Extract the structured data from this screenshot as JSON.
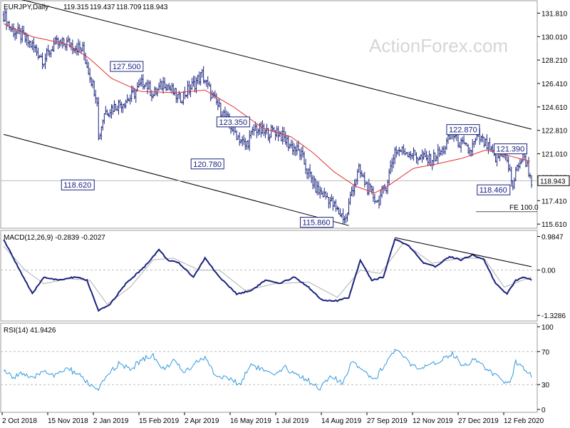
{
  "watermark": "ActionForex.com",
  "colors": {
    "bars": "#1a237e",
    "ma": "#e03030",
    "channel": "#000000",
    "macd": "#1a237e",
    "signal": "#b0b0b0",
    "rsi": "#3399dd",
    "grid": "#bdbdbd"
  },
  "chart_data": [
    {
      "type": "ohlc",
      "title": "EURJPY,Daily",
      "ohlc_readout": [
        "119.315",
        "119.437",
        "118.709",
        "118.943"
      ],
      "y_ticks": [
        131.81,
        130.01,
        128.21,
        126.41,
        124.61,
        122.81,
        121.01,
        119.21,
        117.41,
        115.61
      ],
      "y_tick_labels": [
        "131.810",
        "130.010",
        "128.210",
        "126.410",
        "124.610",
        "122.810",
        "121.010",
        "119.210",
        "117.410",
        "115.610"
      ],
      "ylim": [
        115.4,
        132.6
      ],
      "last_price": "118.943",
      "last_value": 118.943,
      "x_labels": [
        "2 Oct 2018",
        "15 Nov 2018",
        "2 Jan 2019",
        "15 Feb 2019",
        "2 Apr 2019",
        "16 May 2019",
        "1 Jul 2019",
        "14 Aug 2019",
        "27 Sep 2019",
        "12 Nov 2019",
        "27 Dec 2019",
        "12 Feb 2020"
      ],
      "anchors": [
        {
          "i": 0,
          "v": 131.7
        },
        {
          "i": 5,
          "v": 130.6
        },
        {
          "i": 12,
          "v": 130.1
        },
        {
          "i": 20,
          "v": 129.3
        },
        {
          "i": 28,
          "v": 128.2
        },
        {
          "i": 35,
          "v": 129.4
        },
        {
          "i": 45,
          "v": 129.5
        },
        {
          "i": 55,
          "v": 129.0
        },
        {
          "i": 62,
          "v": 126.3
        },
        {
          "i": 65,
          "v": 125.3
        },
        {
          "i": 66,
          "v": 122.1
        },
        {
          "i": 70,
          "v": 124.2
        },
        {
          "i": 80,
          "v": 124.8
        },
        {
          "i": 88,
          "v": 125.3
        },
        {
          "i": 98,
          "v": 126.6
        },
        {
          "i": 104,
          "v": 125.5
        },
        {
          "i": 112,
          "v": 126.5
        },
        {
          "i": 122,
          "v": 125.2
        },
        {
          "i": 132,
          "v": 126.3
        },
        {
          "i": 138,
          "v": 127.1
        },
        {
          "i": 145,
          "v": 125.4
        },
        {
          "i": 152,
          "v": 124.2
        },
        {
          "i": 160,
          "v": 122.8
        },
        {
          "i": 168,
          "v": 121.6
        },
        {
          "i": 175,
          "v": 123.0
        },
        {
          "i": 182,
          "v": 122.6
        },
        {
          "i": 190,
          "v": 122.8
        },
        {
          "i": 198,
          "v": 121.8
        },
        {
          "i": 206,
          "v": 121.1
        },
        {
          "i": 212,
          "v": 119.5
        },
        {
          "i": 218,
          "v": 118.2
        },
        {
          "i": 226,
          "v": 117.6
        },
        {
          "i": 232,
          "v": 116.6
        },
        {
          "i": 238,
          "v": 116.0
        },
        {
          "i": 242,
          "v": 118.2
        },
        {
          "i": 247,
          "v": 119.7
        },
        {
          "i": 253,
          "v": 118.4
        },
        {
          "i": 260,
          "v": 117.3
        },
        {
          "i": 266,
          "v": 118.6
        },
        {
          "i": 272,
          "v": 121.3
        },
        {
          "i": 280,
          "v": 121.2
        },
        {
          "i": 288,
          "v": 120.8
        },
        {
          "i": 296,
          "v": 120.5
        },
        {
          "i": 305,
          "v": 121.2
        },
        {
          "i": 312,
          "v": 122.6
        },
        {
          "i": 318,
          "v": 121.7
        },
        {
          "i": 324,
          "v": 121.2
        },
        {
          "i": 330,
          "v": 122.3
        },
        {
          "i": 336,
          "v": 121.6
        },
        {
          "i": 342,
          "v": 120.6
        },
        {
          "i": 348,
          "v": 121.2
        },
        {
          "i": 354,
          "v": 118.6
        },
        {
          "i": 358,
          "v": 120.3
        },
        {
          "i": 362,
          "v": 120.8
        },
        {
          "i": 367,
          "v": 118.943
        }
      ],
      "bar_count": 368,
      "ma_anchors": [
        {
          "i": 0,
          "v": 131.0
        },
        {
          "i": 20,
          "v": 130.0
        },
        {
          "i": 45,
          "v": 129.4
        },
        {
          "i": 60,
          "v": 128.3
        },
        {
          "i": 75,
          "v": 126.8
        },
        {
          "i": 95,
          "v": 125.8
        },
        {
          "i": 120,
          "v": 125.7
        },
        {
          "i": 140,
          "v": 125.9
        },
        {
          "i": 160,
          "v": 124.6
        },
        {
          "i": 180,
          "v": 123.0
        },
        {
          "i": 200,
          "v": 122.3
        },
        {
          "i": 215,
          "v": 121.1
        },
        {
          "i": 230,
          "v": 119.6
        },
        {
          "i": 245,
          "v": 118.5
        },
        {
          "i": 258,
          "v": 118.0
        },
        {
          "i": 268,
          "v": 118.6
        },
        {
          "i": 285,
          "v": 119.9
        },
        {
          "i": 300,
          "v": 120.2
        },
        {
          "i": 320,
          "v": 120.7
        },
        {
          "i": 335,
          "v": 121.3
        },
        {
          "i": 350,
          "v": 120.9
        },
        {
          "i": 367,
          "v": 120.4
        }
      ],
      "channel_upper": [
        {
          "i": 0,
          "v": 133.2
        },
        {
          "i": 367,
          "v": 122.9
        }
      ],
      "channel_lower": [
        {
          "i": 0,
          "v": 122.5
        },
        {
          "i": 240,
          "v": 115.5
        }
      ],
      "horizontal_line": 118.943,
      "annotations": [
        {
          "text": "127.500",
          "i": 98,
          "v": 127.5,
          "dx": -48,
          "dy": -4
        },
        {
          "text": "123.350",
          "i": 175,
          "v": 123.35,
          "dx": -54,
          "dy": -2
        },
        {
          "text": "120.780",
          "i": 168,
          "v": 120.78,
          "dx": -76,
          "dy": 10
        },
        {
          "text": "118.620",
          "i": 66,
          "v": 118.62,
          "dx": -52,
          "dy": 0
        },
        {
          "text": "115.860",
          "i": 238,
          "v": 115.86,
          "dx": -64,
          "dy": 2
        },
        {
          "text": "122.870",
          "i": 312,
          "v": 122.87,
          "dx": -8,
          "dy": 0
        },
        {
          "text": "121.390",
          "i": 342,
          "v": 121.39,
          "dx": -2,
          "dy": 0
        },
        {
          "text": "118.460",
          "i": 354,
          "v": 118.46,
          "dx": -50,
          "dy": 4
        }
      ],
      "fe_label": "FE 100.0",
      "fe_value": 117.0
    },
    {
      "type": "line",
      "title": "MACD(12,26,9) -0.2839 -0.2027",
      "y_tick_labels": [
        "0.9847",
        "0.00",
        "-1.3286"
      ],
      "y_ticks": [
        0.9847,
        0.0,
        -1.3286
      ],
      "ylim": [
        -1.45,
        1.1
      ],
      "macd": [
        {
          "i": 0,
          "v": 0.9
        },
        {
          "i": 10,
          "v": 0.1
        },
        {
          "i": 20,
          "v": -0.7
        },
        {
          "i": 28,
          "v": -0.2
        },
        {
          "i": 38,
          "v": -0.3
        },
        {
          "i": 50,
          "v": -0.2
        },
        {
          "i": 58,
          "v": -0.3
        },
        {
          "i": 66,
          "v": -1.2
        },
        {
          "i": 74,
          "v": -1.0
        },
        {
          "i": 85,
          "v": -0.4
        },
        {
          "i": 98,
          "v": 0.1
        },
        {
          "i": 108,
          "v": 0.6
        },
        {
          "i": 114,
          "v": 0.3
        },
        {
          "i": 122,
          "v": 0.2
        },
        {
          "i": 132,
          "v": -0.2
        },
        {
          "i": 140,
          "v": 0.35
        },
        {
          "i": 150,
          "v": -0.2
        },
        {
          "i": 162,
          "v": -0.7
        },
        {
          "i": 172,
          "v": -0.6
        },
        {
          "i": 182,
          "v": -0.3
        },
        {
          "i": 192,
          "v": -0.4
        },
        {
          "i": 202,
          "v": -0.2
        },
        {
          "i": 212,
          "v": -0.5
        },
        {
          "i": 222,
          "v": -0.9
        },
        {
          "i": 232,
          "v": -0.9
        },
        {
          "i": 240,
          "v": -0.8
        },
        {
          "i": 248,
          "v": 0.3
        },
        {
          "i": 256,
          "v": -0.3
        },
        {
          "i": 264,
          "v": -0.2
        },
        {
          "i": 272,
          "v": 0.9
        },
        {
          "i": 282,
          "v": 0.7
        },
        {
          "i": 292,
          "v": 0.2
        },
        {
          "i": 300,
          "v": 0.1
        },
        {
          "i": 310,
          "v": 0.4
        },
        {
          "i": 318,
          "v": 0.3
        },
        {
          "i": 326,
          "v": 0.45
        },
        {
          "i": 334,
          "v": 0.3
        },
        {
          "i": 342,
          "v": -0.4
        },
        {
          "i": 350,
          "v": -0.7
        },
        {
          "i": 356,
          "v": -0.3
        },
        {
          "i": 362,
          "v": -0.2
        },
        {
          "i": 367,
          "v": -0.28
        }
      ],
      "signal": [
        {
          "i": 0,
          "v": 0.7
        },
        {
          "i": 15,
          "v": 0.0
        },
        {
          "i": 28,
          "v": -0.4
        },
        {
          "i": 45,
          "v": -0.25
        },
        {
          "i": 60,
          "v": -0.3
        },
        {
          "i": 72,
          "v": -1.0
        },
        {
          "i": 88,
          "v": -0.5
        },
        {
          "i": 104,
          "v": 0.3
        },
        {
          "i": 118,
          "v": 0.35
        },
        {
          "i": 136,
          "v": 0.0
        },
        {
          "i": 150,
          "v": 0.0
        },
        {
          "i": 168,
          "v": -0.6
        },
        {
          "i": 188,
          "v": -0.4
        },
        {
          "i": 212,
          "v": -0.35
        },
        {
          "i": 232,
          "v": -0.8
        },
        {
          "i": 248,
          "v": 0.0
        },
        {
          "i": 262,
          "v": -0.1
        },
        {
          "i": 278,
          "v": 0.8
        },
        {
          "i": 298,
          "v": 0.2
        },
        {
          "i": 318,
          "v": 0.35
        },
        {
          "i": 334,
          "v": 0.35
        },
        {
          "i": 348,
          "v": -0.5
        },
        {
          "i": 367,
          "v": -0.2
        }
      ],
      "trendline": [
        {
          "i": 272,
          "v": 0.95
        },
        {
          "i": 367,
          "v": 0.1
        }
      ]
    },
    {
      "type": "line",
      "title": "RSI(14) 41.9426",
      "y_ticks": [
        100,
        70,
        30,
        0
      ],
      "y_tick_labels": [
        "100",
        "70",
        "30",
        "0"
      ],
      "ylim": [
        0,
        100
      ],
      "levels": [
        70,
        30
      ],
      "rsi": [
        {
          "i": 0,
          "v": 48
        },
        {
          "i": 6,
          "v": 38
        },
        {
          "i": 12,
          "v": 45
        },
        {
          "i": 20,
          "v": 36
        },
        {
          "i": 28,
          "v": 48
        },
        {
          "i": 36,
          "v": 40
        },
        {
          "i": 44,
          "v": 50
        },
        {
          "i": 52,
          "v": 42
        },
        {
          "i": 60,
          "v": 30
        },
        {
          "i": 66,
          "v": 22
        },
        {
          "i": 72,
          "v": 42
        },
        {
          "i": 80,
          "v": 55
        },
        {
          "i": 88,
          "v": 48
        },
        {
          "i": 96,
          "v": 60
        },
        {
          "i": 104,
          "v": 66
        },
        {
          "i": 110,
          "v": 48
        },
        {
          "i": 118,
          "v": 58
        },
        {
          "i": 126,
          "v": 45
        },
        {
          "i": 134,
          "v": 58
        },
        {
          "i": 140,
          "v": 62
        },
        {
          "i": 148,
          "v": 40
        },
        {
          "i": 156,
          "v": 38
        },
        {
          "i": 164,
          "v": 30
        },
        {
          "i": 172,
          "v": 55
        },
        {
          "i": 180,
          "v": 48
        },
        {
          "i": 188,
          "v": 40
        },
        {
          "i": 196,
          "v": 50
        },
        {
          "i": 204,
          "v": 42
        },
        {
          "i": 212,
          "v": 35
        },
        {
          "i": 220,
          "v": 26
        },
        {
          "i": 228,
          "v": 40
        },
        {
          "i": 236,
          "v": 30
        },
        {
          "i": 242,
          "v": 60
        },
        {
          "i": 250,
          "v": 48
        },
        {
          "i": 258,
          "v": 36
        },
        {
          "i": 264,
          "v": 52
        },
        {
          "i": 272,
          "v": 72
        },
        {
          "i": 280,
          "v": 60
        },
        {
          "i": 288,
          "v": 48
        },
        {
          "i": 296,
          "v": 52
        },
        {
          "i": 304,
          "v": 60
        },
        {
          "i": 312,
          "v": 68
        },
        {
          "i": 320,
          "v": 52
        },
        {
          "i": 328,
          "v": 62
        },
        {
          "i": 336,
          "v": 48
        },
        {
          "i": 344,
          "v": 38
        },
        {
          "i": 352,
          "v": 30
        },
        {
          "i": 356,
          "v": 58
        },
        {
          "i": 362,
          "v": 50
        },
        {
          "i": 367,
          "v": 42
        }
      ]
    }
  ]
}
